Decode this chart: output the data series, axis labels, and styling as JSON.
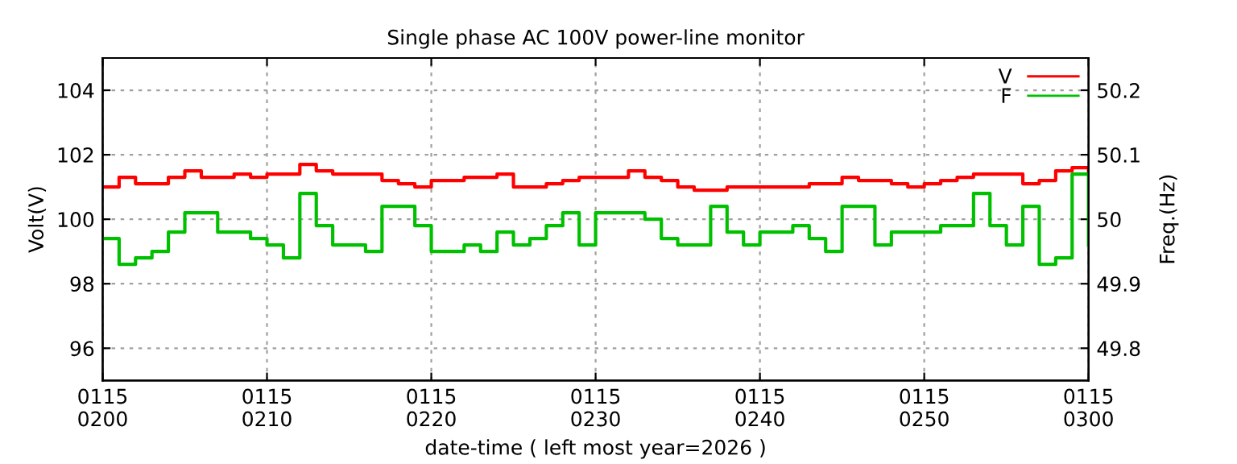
{
  "chart_data": {
    "type": "step",
    "title": "Single phase AC 100V power-line monitor",
    "xlabel": "date-time ( left most year=2026 )",
    "ylabel": "Volt(V)",
    "y2label": "Freq.(Hz)",
    "xlim": [
      "2026-01-15T02:00",
      "2026-01-15T03:00"
    ],
    "xticks": [
      {
        "value": "2026-01-15T02:00",
        "label": "0115\n0200"
      },
      {
        "value": "2026-01-15T02:10",
        "label": "0115\n0210"
      },
      {
        "value": "2026-01-15T02:20",
        "label": "0115\n0220"
      },
      {
        "value": "2026-01-15T02:30",
        "label": "0115\n0230"
      },
      {
        "value": "2026-01-15T02:40",
        "label": "0115\n0240"
      },
      {
        "value": "2026-01-15T02:50",
        "label": "0115\n0250"
      },
      {
        "value": "2026-01-15T03:00",
        "label": "0115\n0300"
      }
    ],
    "x": [
      "2026-01-15T02:00",
      "2026-01-15T02:01",
      "2026-01-15T02:02",
      "2026-01-15T02:03",
      "2026-01-15T02:04",
      "2026-01-15T02:05",
      "2026-01-15T02:06",
      "2026-01-15T02:07",
      "2026-01-15T02:08",
      "2026-01-15T02:09",
      "2026-01-15T02:10",
      "2026-01-15T02:11",
      "2026-01-15T02:12",
      "2026-01-15T02:13",
      "2026-01-15T02:14",
      "2026-01-15T02:15",
      "2026-01-15T02:16",
      "2026-01-15T02:17",
      "2026-01-15T02:18",
      "2026-01-15T02:19",
      "2026-01-15T02:20",
      "2026-01-15T02:21",
      "2026-01-15T02:22",
      "2026-01-15T02:23",
      "2026-01-15T02:24",
      "2026-01-15T02:25",
      "2026-01-15T02:26",
      "2026-01-15T02:27",
      "2026-01-15T02:28",
      "2026-01-15T02:29",
      "2026-01-15T02:30",
      "2026-01-15T02:31",
      "2026-01-15T02:32",
      "2026-01-15T02:33",
      "2026-01-15T02:34",
      "2026-01-15T02:35",
      "2026-01-15T02:36",
      "2026-01-15T02:37",
      "2026-01-15T02:38",
      "2026-01-15T02:39",
      "2026-01-15T02:40",
      "2026-01-15T02:41",
      "2026-01-15T02:42",
      "2026-01-15T02:43",
      "2026-01-15T02:44",
      "2026-01-15T02:45",
      "2026-01-15T02:46",
      "2026-01-15T02:47",
      "2026-01-15T02:48",
      "2026-01-15T02:49",
      "2026-01-15T02:50",
      "2026-01-15T02:51",
      "2026-01-15T02:52",
      "2026-01-15T02:53",
      "2026-01-15T02:54",
      "2026-01-15T02:55",
      "2026-01-15T02:56",
      "2026-01-15T02:57",
      "2026-01-15T02:58",
      "2026-01-15T02:59",
      "2026-01-15T03:00"
    ],
    "ylim": [
      95,
      105
    ],
    "yticks": [
      96,
      98,
      100,
      102,
      104
    ],
    "y2lim": [
      49.75,
      50.25
    ],
    "y2ticks": [
      49.8,
      49.9,
      50,
      50.1,
      50.2
    ],
    "grid": true,
    "legend": "top right",
    "line_style": "solid",
    "series": [
      {
        "name": "V",
        "color": "#ff0000",
        "values": [
          101.0,
          101.3,
          101.1,
          101.1,
          101.3,
          101.5,
          101.3,
          101.3,
          101.4,
          101.3,
          101.4,
          101.4,
          101.7,
          101.5,
          101.4,
          101.4,
          101.4,
          101.2,
          101.1,
          101.0,
          101.2,
          101.2,
          101.3,
          101.3,
          101.4,
          101.0,
          101.0,
          101.1,
          101.2,
          101.3,
          101.3,
          101.3,
          101.5,
          101.3,
          101.2,
          101.0,
          100.9,
          100.9,
          101.0,
          101.0,
          101.0,
          101.0,
          101.0,
          101.1,
          101.1,
          101.3,
          101.2,
          101.2,
          101.1,
          101.0,
          101.1,
          101.2,
          101.3,
          101.4,
          101.4,
          101.4,
          101.1,
          101.2,
          101.5,
          101.6,
          101.4
        ]
      },
      {
        "name": "F",
        "color": "#00c000",
        "axis": "y2",
        "values": [
          49.97,
          49.93,
          49.94,
          49.95,
          49.98,
          50.01,
          50.01,
          49.98,
          49.98,
          49.97,
          49.96,
          49.94,
          50.04,
          49.99,
          49.96,
          49.96,
          49.95,
          50.02,
          50.02,
          49.99,
          49.95,
          49.95,
          49.96,
          49.95,
          49.98,
          49.96,
          49.97,
          49.99,
          50.01,
          49.96,
          50.01,
          50.01,
          50.01,
          50.0,
          49.97,
          49.96,
          49.96,
          50.02,
          49.98,
          49.96,
          49.98,
          49.98,
          49.99,
          49.97,
          49.95,
          50.02,
          50.02,
          49.96,
          49.98,
          49.98,
          49.98,
          49.99,
          49.99,
          50.04,
          49.99,
          49.96,
          50.02,
          49.93,
          49.94,
          50.07,
          49.96
        ]
      }
    ]
  }
}
